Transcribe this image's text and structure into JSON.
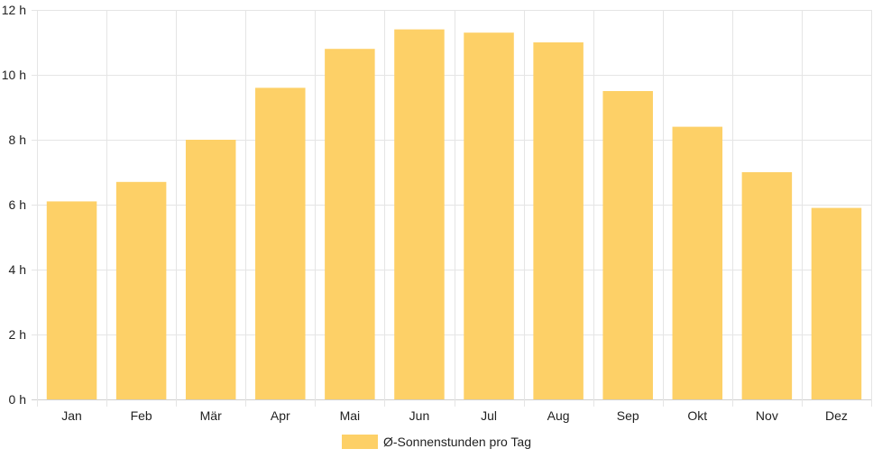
{
  "chart_data": {
    "type": "bar",
    "categories": [
      "Jan",
      "Feb",
      "Mär",
      "Apr",
      "Mai",
      "Jun",
      "Jul",
      "Aug",
      "Sep",
      "Okt",
      "Nov",
      "Dez"
    ],
    "series": [
      {
        "name": "Ø-Sonnenstunden pro Tag",
        "values": [
          6.1,
          6.7,
          8.0,
          9.6,
          10.8,
          11.4,
          11.3,
          11.0,
          9.5,
          8.4,
          7.0,
          5.9
        ]
      }
    ],
    "ylim": [
      0,
      12
    ],
    "yticks": [
      0,
      2,
      4,
      6,
      8,
      10,
      12
    ],
    "ytick_labels": [
      "0 h",
      "2 h",
      "4 h",
      "6 h",
      "8 h",
      "10 h",
      "12 h"
    ],
    "grid": true,
    "legend_position": "bottom",
    "bar_color": "#fdd067",
    "grid_color": "#e5e5e5"
  }
}
